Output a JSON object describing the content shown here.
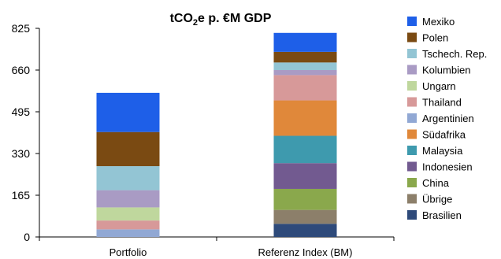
{
  "chart_data": {
    "type": "bar",
    "stacked": true,
    "title": "tCO₂e p. €M GDP",
    "xlabel": "",
    "ylabel": "",
    "ylim": [
      0,
      825
    ],
    "yticks": [
      0,
      165,
      330,
      495,
      660,
      825
    ],
    "grid": false,
    "legend_position": "right",
    "categories": [
      "Portfolio",
      "Referenz Index (BM)"
    ],
    "series": [
      {
        "name": "Brasilien",
        "color": "#2E4A7A",
        "values": [
          0,
          52
        ]
      },
      {
        "name": "Übrige",
        "color": "#8C7F6A",
        "values": [
          0,
          55
        ]
      },
      {
        "name": "China",
        "color": "#8AA84C",
        "values": [
          0,
          83
        ]
      },
      {
        "name": "Indonesien",
        "color": "#725A90",
        "values": [
          0,
          102
        ]
      },
      {
        "name": "Malaysia",
        "color": "#3E9AAE",
        "values": [
          0,
          108
        ]
      },
      {
        "name": "Südafrika",
        "color": "#E0883A",
        "values": [
          0,
          140
        ]
      },
      {
        "name": "Argentinien",
        "color": "#91A8D4",
        "values": [
          30,
          0
        ]
      },
      {
        "name": "Thailand",
        "color": "#D79999",
        "values": [
          35,
          100
        ]
      },
      {
        "name": "Ungarn",
        "color": "#BFD79D",
        "values": [
          52,
          0
        ]
      },
      {
        "name": "Kolumbien",
        "color": "#A99BC4",
        "values": [
          68,
          20
        ]
      },
      {
        "name": "Tschech. Rep.",
        "color": "#93C5D4",
        "values": [
          95,
          30
        ]
      },
      {
        "name": "Polen",
        "color": "#7A4A12",
        "values": [
          135,
          42
        ]
      },
      {
        "name": "Mexiko",
        "color": "#1E5FE8",
        "values": [
          155,
          75
        ]
      }
    ],
    "legend_order": [
      "Mexiko",
      "Polen",
      "Tschech. Rep.",
      "Kolumbien",
      "Ungarn",
      "Thailand",
      "Argentinien",
      "Südafrika",
      "Malaysia",
      "Indonesien",
      "China",
      "Übrige",
      "Brasilien"
    ]
  }
}
